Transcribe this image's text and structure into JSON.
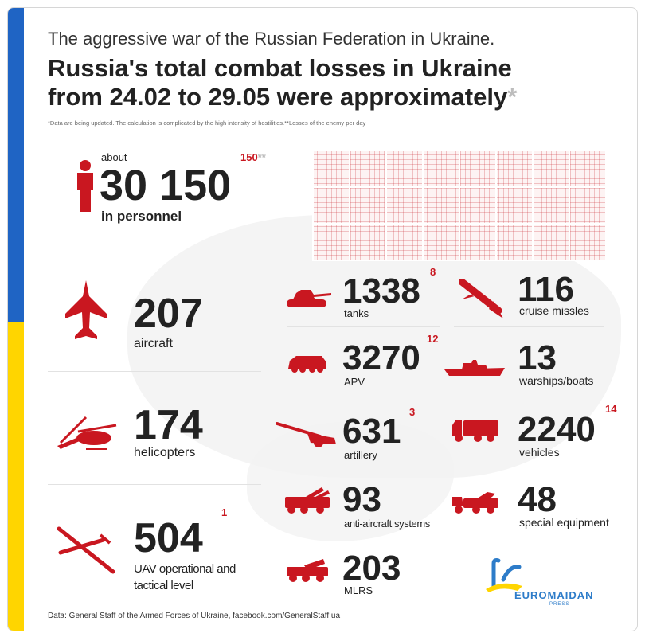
{
  "header": {
    "subtitle": "The aggressive war of the Russian Federation in Ukraine.",
    "title_line1": "Russia's total combat losses in Ukraine",
    "title_line2": "from 24.02 to 29.05 were approximately",
    "title_star": "*",
    "note": "*Data are being updated. The calculation is complicated by the high intensity of hostilities.**Losses of the enemy per day"
  },
  "personnel": {
    "prefix": "about",
    "value": "30 150",
    "label": "in personnel",
    "daily": "150",
    "daily_mark": "**"
  },
  "stats": {
    "aircraft": {
      "value": "207",
      "label": "aircraft",
      "icon": "fighter-jet-icon"
    },
    "helicopters": {
      "value": "174",
      "label": "helicopters",
      "icon": "helicopter-icon"
    },
    "uav": {
      "value": "504",
      "label_line1": "UAV operational and",
      "label_line2": "tactical level",
      "daily": "1",
      "icon": "drone-icon"
    },
    "tanks": {
      "value": "1338",
      "label": "tanks",
      "daily": "8",
      "icon": "tank-icon"
    },
    "apv": {
      "value": "3270",
      "label": "APV",
      "daily": "12",
      "icon": "armored-vehicle-icon"
    },
    "artillery": {
      "value": "631",
      "label": "artillery",
      "daily": "3",
      "icon": "artillery-icon"
    },
    "anti_aircraft": {
      "value": "93",
      "label": "anti-aircraft systems",
      "icon": "anti-aircraft-icon"
    },
    "mlrs": {
      "value": "203",
      "label": "MLRS",
      "icon": "mlrs-icon"
    },
    "cruise_missiles": {
      "value": "116",
      "label": "cruise missles",
      "icon": "missile-icon"
    },
    "warships": {
      "value": "13",
      "label": "warships/boats",
      "icon": "warship-icon"
    },
    "vehicles": {
      "value": "2240",
      "label": "vehicles",
      "daily": "14",
      "icon": "truck-icon"
    },
    "special_equipment": {
      "value": "48",
      "label": "special equipment",
      "icon": "special-equipment-icon"
    }
  },
  "footer": {
    "source": "Data: General Staff of the Armed Forces of Ukraine, facebook.com/GeneralStaff.ua"
  },
  "logo": {
    "name": "EUROMAIDAN",
    "sub": "PRESS"
  },
  "colors": {
    "accent_red": "#c91720",
    "flag_blue": "#1f64c4",
    "flag_yellow": "#ffd500",
    "logo_blue": "#2d7cc9"
  }
}
